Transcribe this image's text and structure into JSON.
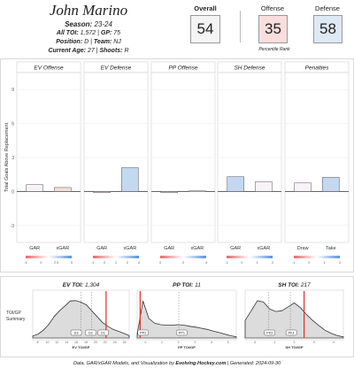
{
  "player": {
    "name": "John Marino",
    "season_label": "Season:",
    "season": "23-24",
    "toi_label": "All TOI:",
    "toi": "1,572",
    "gp_label": "GP:",
    "gp": "75",
    "position_label": "Position:",
    "position": "D",
    "team_label": "Team:",
    "team": "NJ",
    "age_label": "Current Age:",
    "age": "27",
    "shoots_label": "Shoots:",
    "shoots": "R"
  },
  "ranks": {
    "overall_label": "Overall",
    "overall": "54",
    "offense_label": "Offense",
    "offense": "35",
    "defense_label": "Defense",
    "defense": "58",
    "caption": "Percentile Rank"
  },
  "colors": {
    "offense_bg": "#f9dede",
    "defense_bg": "#dfe9f6",
    "overall_bg": "#f4f4f4",
    "neg_bar": "#f4d6d6",
    "pos_bar": "#c4d8f0",
    "toi_line": "#d9302d"
  },
  "chart_data": [
    {
      "type": "bar",
      "ylabel": "Total Goals Above Replacement",
      "ylim": [
        -4.5,
        10.5
      ],
      "yticks": [
        -3,
        0,
        3,
        6,
        9
      ],
      "panels": [
        {
          "title": "EV Offense",
          "categories": [
            "GAR",
            "xGAR"
          ],
          "values": [
            0.6,
            0.35
          ],
          "scale_ticks": [
            "-4",
            "0",
            "2.5",
            "5"
          ]
        },
        {
          "title": "EV Defense",
          "categories": [
            "GAR",
            "xGAR"
          ],
          "values": [
            -0.1,
            2.1
          ],
          "scale_ticks": [
            "-1",
            "0",
            "1",
            "2",
            "3"
          ]
        },
        {
          "title": "PP Offense",
          "categories": [
            "GAR",
            "xGAR"
          ],
          "values": [
            -0.1,
            0.05
          ],
          "scale_ticks": [
            "0",
            "2",
            "4"
          ]
        },
        {
          "title": "SH Defense",
          "categories": [
            "GAR",
            "xGAR"
          ],
          "values": [
            1.3,
            0.85
          ],
          "scale_ticks": [
            "-1",
            "0",
            "1",
            "2"
          ]
        },
        {
          "title": "Penalties",
          "categories": [
            "Draw",
            "Take"
          ],
          "values": [
            0.75,
            1.25
          ],
          "scale_ticks": [
            "-1",
            "0",
            "1",
            "2"
          ]
        }
      ]
    },
    {
      "type": "area",
      "panel_label": "TOI/GP Summary",
      "panels": [
        {
          "title_label": "EV TOI:",
          "title_value": "1,304",
          "xlabel": "EV TOI/GP",
          "xticks": [
            "8",
            "10",
            "12",
            "14",
            "16",
            "18",
            "20",
            "22",
            "24",
            "26"
          ],
          "markers": [
            "D3",
            "D2",
            "D1"
          ]
        },
        {
          "title_label": "PP TOI:",
          "title_value": "11",
          "xlabel": "PP TOI/GP",
          "xticks": [
            "0",
            "1",
            "2",
            "3",
            "4",
            "5"
          ],
          "markers": [
            "PP2",
            "PP1"
          ]
        },
        {
          "title_label": "SH TOI:",
          "title_value": "217",
          "xlabel": "SH TOI/GP",
          "xticks": [
            "0",
            "1",
            "2",
            "3",
            "4"
          ],
          "markers": [
            "PK2",
            "PK1"
          ]
        }
      ]
    }
  ],
  "footer": {
    "prefix": "Data, GAR/xGAR Models, and Visualization by",
    "brand": "Evolving-Hockey.com",
    "sep": "|",
    "generated": "Generated: 2024-09-30"
  }
}
